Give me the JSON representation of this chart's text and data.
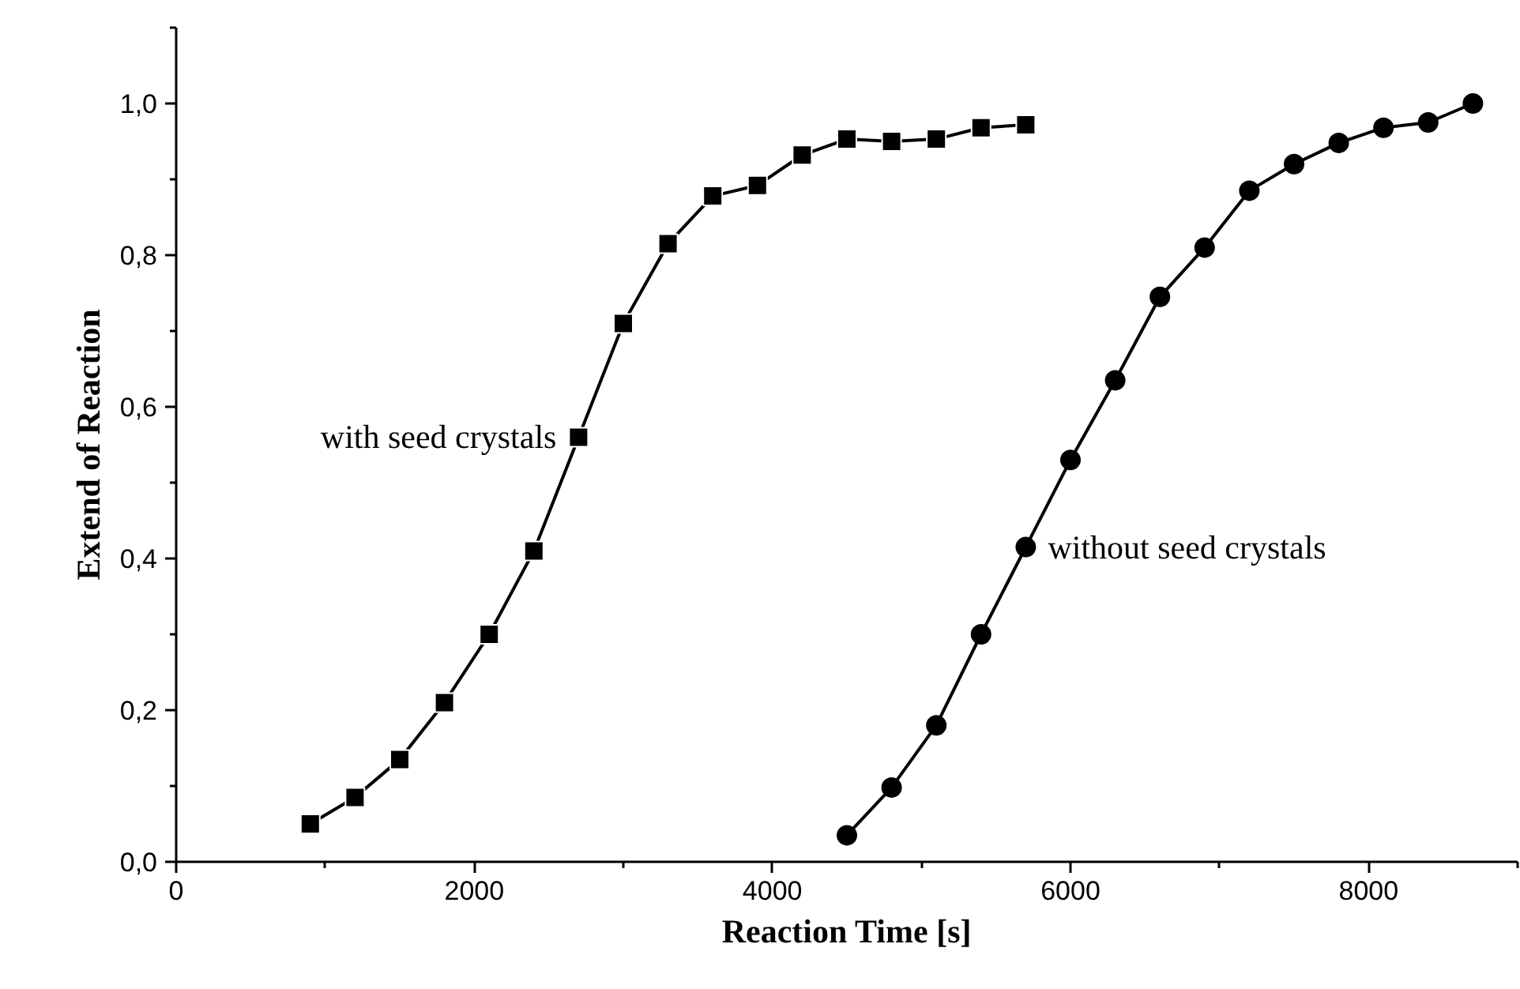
{
  "chart_data": {
    "type": "line",
    "xlabel": "Reaction Time [s]",
    "ylabel": "Extend of Reaction",
    "xlim": [
      0,
      9000
    ],
    "xticks": [
      0,
      2000,
      4000,
      6000,
      8000
    ],
    "ylim": [
      0,
      1.1
    ],
    "yticks": [
      {
        "value": 0,
        "label": "0,0"
      },
      {
        "value": 0.2,
        "label": "0,2"
      },
      {
        "value": 0.4,
        "label": "0,4"
      },
      {
        "value": 0.6,
        "label": "0,6"
      },
      {
        "value": 0.8,
        "label": "0,8"
      },
      {
        "value": 1.0,
        "label": "1,0"
      }
    ],
    "grid": false,
    "line_style": "solid",
    "series": [
      {
        "name": "with seed crystals",
        "color": "#000000",
        "marker": "square",
        "x": [
          900,
          1200,
          1500,
          1800,
          2100,
          2400,
          2700,
          3000,
          3300,
          3600,
          3900,
          4200,
          4500,
          4800,
          5100,
          5400,
          5700
        ],
        "values": [
          0.05,
          0.085,
          0.135,
          0.21,
          0.3,
          0.41,
          0.56,
          0.71,
          0.815,
          0.878,
          0.892,
          0.932,
          0.953,
          0.95,
          0.953,
          0.968,
          0.972
        ]
      },
      {
        "name": "without seed crystals",
        "color": "#000000",
        "marker": "circle",
        "x": [
          4500,
          4800,
          5100,
          5400,
          5700,
          6000,
          6300,
          6600,
          6900,
          7200,
          7500,
          7800,
          8100,
          8400,
          8700
        ],
        "values": [
          0.035,
          0.098,
          0.18,
          0.3,
          0.415,
          0.53,
          0.635,
          0.745,
          0.81,
          0.885,
          0.92,
          0.948,
          0.968,
          0.975,
          1.0
        ]
      }
    ]
  }
}
